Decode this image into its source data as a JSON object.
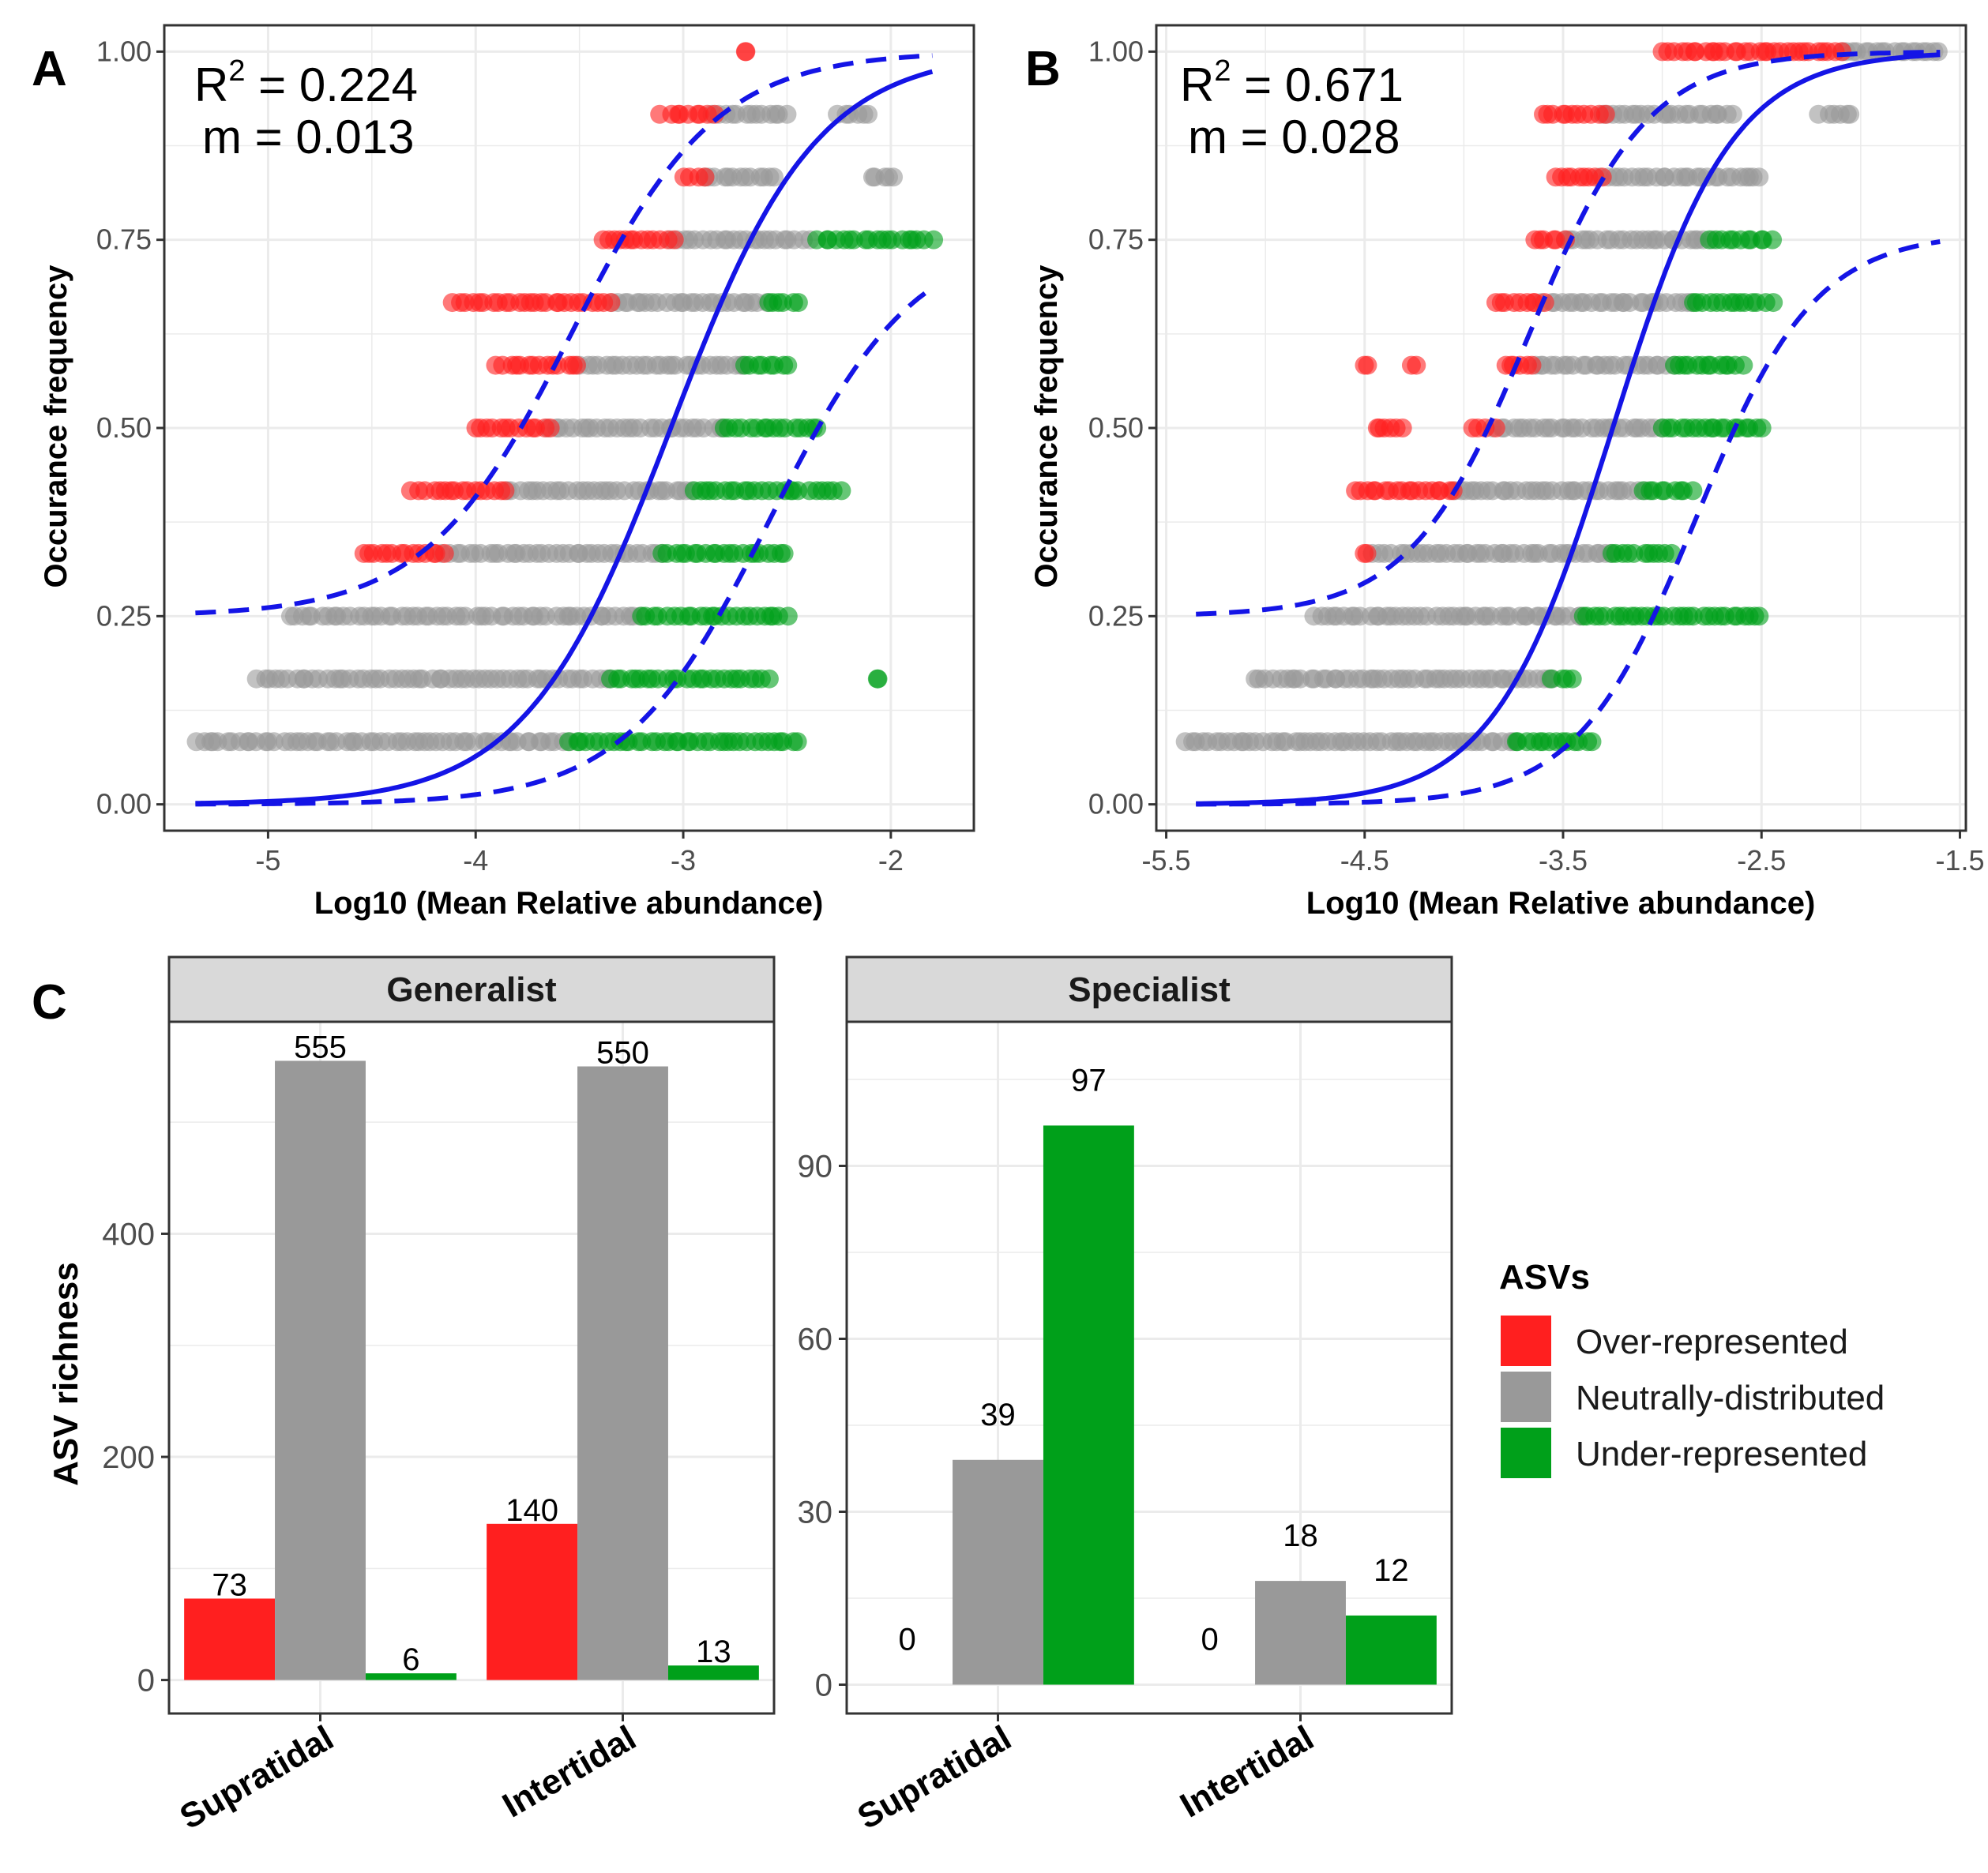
{
  "figure": {
    "panel_labels": [
      "A",
      "B",
      "C"
    ]
  },
  "colors": {
    "over": "#ff1f1f",
    "neutral": "#999999",
    "under": "#00a01a",
    "fit": "#1414e6",
    "grid": "#ebebeb",
    "strip": "#d9d9d9"
  },
  "chart_data": [
    {
      "id": "A",
      "type": "scatter",
      "title": "",
      "xlabel": "Log10 (Mean Relative abundance)",
      "ylabel": "Occurance frequency",
      "xlim": [
        -5.5,
        -1.6
      ],
      "ylim": [
        -0.035,
        1.035
      ],
      "xticks": [
        -5,
        -4,
        -3,
        -2
      ],
      "xtick_labels": [
        "-5",
        "-4",
        "-3",
        "-2"
      ],
      "yticks": [
        0,
        0.25,
        0.5,
        0.75,
        1
      ],
      "ytick_labels": [
        "0.00",
        "0.25",
        "0.50",
        "0.75",
        "1.00"
      ],
      "annotation": {
        "r2_prefix": "R",
        "r2_sup": "2",
        "r2_value": " = 0.224",
        "m_text": "m = 0.013"
      },
      "fit": {
        "m": 0.013,
        "x0": -3.06,
        "s": 0.35,
        "lower_offset": 0.48,
        "upper_offset": 0.48,
        "xrange": [
          -5.35,
          -1.8
        ]
      },
      "rows": [
        {
          "y": 1.0,
          "red": [
            [
              -2.7,
              -2.7
            ]
          ],
          "grey": [],
          "green": []
        },
        {
          "y": 0.9167,
          "red": [
            [
              -3.1,
              -2.85
            ]
          ],
          "grey": [
            [
              -2.85,
              -2.5
            ],
            [
              -2.25,
              -2.1
            ]
          ],
          "green": []
        },
        {
          "y": 0.8333,
          "red": [
            [
              -3.0,
              -2.9
            ]
          ],
          "grey": [
            [
              -2.9,
              -2.55
            ],
            [
              -2.1,
              -1.98
            ]
          ],
          "green": []
        },
        {
          "y": 0.75,
          "red": [
            [
              -3.4,
              -3.05
            ]
          ],
          "grey": [
            [
              -3.05,
              -2.4
            ]
          ],
          "green": [
            [
              -2.35,
              -1.8
            ]
          ]
        },
        {
          "y": 0.6667,
          "red": [
            [
              -4.1,
              -3.35
            ]
          ],
          "grey": [
            [
              -3.35,
              -2.6
            ]
          ],
          "green": [
            [
              -2.6,
              -2.45
            ]
          ]
        },
        {
          "y": 0.5833,
          "red": [
            [
              -3.9,
              -3.5
            ]
          ],
          "grey": [
            [
              -3.5,
              -2.7
            ]
          ],
          "green": [
            [
              -2.7,
              -2.5
            ]
          ]
        },
        {
          "y": 0.5,
          "red": [
            [
              -4.0,
              -3.65
            ]
          ],
          "grey": [
            [
              -3.65,
              -2.8
            ]
          ],
          "green": [
            [
              -2.8,
              -2.35
            ]
          ]
        },
        {
          "y": 0.4167,
          "red": [
            [
              -4.3,
              -3.85
            ]
          ],
          "grey": [
            [
              -3.85,
              -2.95
            ]
          ],
          "green": [
            [
              -2.95,
              -2.25
            ]
          ]
        },
        {
          "y": 0.3333,
          "red": [
            [
              -4.55,
              -4.15
            ]
          ],
          "grey": [
            [
              -4.15,
              -3.1
            ]
          ],
          "green": [
            [
              -3.1,
              -2.5
            ]
          ]
        },
        {
          "y": 0.25,
          "red": [],
          "grey": [
            [
              -4.9,
              -3.2
            ]
          ],
          "green": [
            [
              -3.2,
              -2.5
            ]
          ]
        },
        {
          "y": 0.1667,
          "red": [],
          "grey": [
            [
              -5.05,
              -3.35
            ]
          ],
          "green": [
            [
              -3.35,
              -2.6
            ],
            [
              -2.05,
              -2.05
            ]
          ]
        },
        {
          "y": 0.0833,
          "red": [],
          "grey": [
            [
              -5.35,
              -3.55
            ]
          ],
          "green": [
            [
              -3.55,
              -2.45
            ]
          ]
        }
      ]
    },
    {
      "id": "B",
      "type": "scatter",
      "title": "",
      "xlabel": "Log10 (Mean Relative abundance)",
      "ylabel": "Occurance frequency",
      "xlim": [
        -5.55,
        -1.47
      ],
      "ylim": [
        -0.035,
        1.035
      ],
      "xticks": [
        -5.5,
        -4.5,
        -3.5,
        -2.5,
        -1.5
      ],
      "xtick_labels": [
        "-5.5",
        "-4.5",
        "-3.5",
        "-2.5",
        "-1.5"
      ],
      "yticks": [
        0,
        0.25,
        0.5,
        0.75,
        1
      ],
      "ytick_labels": [
        "0.00",
        "0.25",
        "0.50",
        "0.75",
        "1.00"
      ],
      "annotation": {
        "r2_prefix": "R",
        "r2_sup": "2",
        "r2_value": " = 0.671",
        "m_text": "m = 0.028"
      },
      "fit": {
        "m": 0.028,
        "x0": -3.25,
        "s": 0.3,
        "lower_offset": 0.42,
        "upper_offset": 0.42,
        "xrange": [
          -5.35,
          -1.6
        ]
      },
      "rows": [
        {
          "y": 1.0,
          "red": [
            [
              -3.0,
              -2.1
            ]
          ],
          "grey": [
            [
              -2.1,
              -1.6
            ]
          ],
          "green": []
        },
        {
          "y": 0.9167,
          "red": [
            [
              -3.6,
              -3.3
            ]
          ],
          "grey": [
            [
              -3.3,
              -2.65
            ],
            [
              -2.2,
              -2.05
            ]
          ],
          "green": []
        },
        {
          "y": 0.8333,
          "red": [
            [
              -3.55,
              -3.3
            ]
          ],
          "grey": [
            [
              -3.3,
              -2.5
            ]
          ],
          "green": []
        },
        {
          "y": 0.75,
          "red": [
            [
              -3.65,
              -3.5
            ]
          ],
          "grey": [
            [
              -3.5,
              -2.75
            ]
          ],
          "green": [
            [
              -2.75,
              -2.45
            ]
          ]
        },
        {
          "y": 0.6667,
          "red": [
            [
              -3.85,
              -3.6
            ]
          ],
          "grey": [
            [
              -3.6,
              -2.85
            ]
          ],
          "green": [
            [
              -2.85,
              -2.45
            ]
          ]
        },
        {
          "y": 0.5833,
          "red": [
            [
              -4.5,
              -4.5
            ],
            [
              -4.25,
              -4.25
            ],
            [
              -3.8,
              -3.65
            ]
          ],
          "grey": [
            [
              -3.65,
              -2.95
            ]
          ],
          "green": [
            [
              -2.95,
              -2.6
            ]
          ]
        },
        {
          "y": 0.5,
          "red": [
            [
              -4.45,
              -4.3
            ],
            [
              -3.95,
              -3.85
            ]
          ],
          "grey": [
            [
              -3.85,
              -3.0
            ]
          ],
          "green": [
            [
              -3.0,
              -2.5
            ]
          ]
        },
        {
          "y": 0.4167,
          "red": [
            [
              -4.55,
              -4.05
            ]
          ],
          "grey": [
            [
              -4.05,
              -3.1
            ]
          ],
          "green": [
            [
              -3.1,
              -2.85
            ]
          ]
        },
        {
          "y": 0.3333,
          "red": [
            [
              -4.5,
              -4.5
            ]
          ],
          "grey": [
            [
              -4.45,
              -3.25
            ]
          ],
          "green": [
            [
              -3.25,
              -2.95
            ]
          ]
        },
        {
          "y": 0.25,
          "red": [],
          "grey": [
            [
              -4.75,
              -3.4
            ]
          ],
          "green": [
            [
              -3.4,
              -2.5
            ]
          ]
        },
        {
          "y": 0.1667,
          "red": [],
          "grey": [
            [
              -5.05,
              -3.55
            ]
          ],
          "green": [
            [
              -3.55,
              -3.45
            ]
          ]
        },
        {
          "y": 0.0833,
          "red": [],
          "grey": [
            [
              -5.4,
              -3.75
            ]
          ],
          "green": [
            [
              -3.75,
              -3.35
            ]
          ]
        }
      ]
    },
    {
      "id": "C1",
      "type": "bar",
      "facet": "Generalist",
      "categories": [
        "Supratidal",
        "Intertidal"
      ],
      "ylabel": "ASV richness",
      "ylim": [
        -30,
        590
      ],
      "yticks": [
        0,
        200,
        400
      ],
      "ytick_labels": [
        "0",
        "200",
        "400"
      ],
      "series": [
        {
          "name": "Over-represented",
          "values": [
            73,
            140
          ]
        },
        {
          "name": "Neutrally-distributed",
          "values": [
            555,
            550
          ]
        },
        {
          "name": "Under-represented",
          "values": [
            6,
            13
          ]
        }
      ],
      "value_labels": [
        [
          "73",
          "555",
          "6"
        ],
        [
          "140",
          "550",
          "13"
        ]
      ]
    },
    {
      "id": "C2",
      "type": "bar",
      "facet": "Specialist",
      "categories": [
        "Supratidal",
        "Intertidal"
      ],
      "ylabel": "",
      "ylim": [
        -5,
        115
      ],
      "yticks": [
        0,
        30,
        60,
        90
      ],
      "ytick_labels": [
        "0",
        "30",
        "60",
        "90"
      ],
      "series": [
        {
          "name": "Over-represented",
          "values": [
            0,
            0
          ]
        },
        {
          "name": "Neutrally-distributed",
          "values": [
            39,
            18
          ]
        },
        {
          "name": "Under-represented",
          "values": [
            97,
            12
          ]
        }
      ],
      "value_labels": [
        [
          "0",
          "39",
          "97"
        ],
        [
          "0",
          "18",
          "12"
        ]
      ]
    }
  ],
  "legend": {
    "title": "ASVs",
    "items": [
      {
        "label": "Over-represented",
        "key": "over"
      },
      {
        "label": "Neutrally-distributed",
        "key": "neutral"
      },
      {
        "label": "Under-represented",
        "key": "under"
      }
    ]
  }
}
